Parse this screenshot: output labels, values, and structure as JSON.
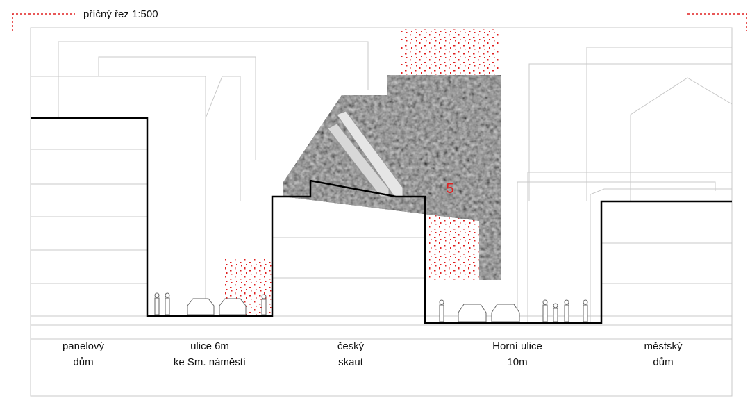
{
  "header": {
    "title": "příčný řez 1:500"
  },
  "marker": "5",
  "labels": [
    {
      "lines": [
        "panelový",
        "dům"
      ]
    },
    {
      "lines": [
        "ulice 6m",
        "ke Sm. náměstí"
      ]
    },
    {
      "lines": [
        "český",
        "skaut"
      ]
    },
    {
      "lines": [
        "Horní ulice",
        "10m"
      ]
    },
    {
      "lines": [
        "městský",
        "dům"
      ]
    }
  ]
}
